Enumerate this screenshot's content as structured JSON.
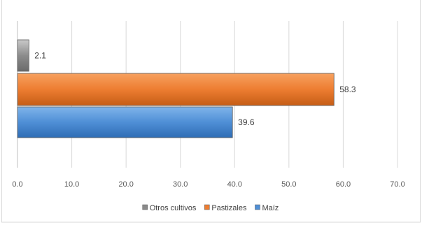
{
  "chart_data": {
    "type": "bar",
    "orientation": "horizontal",
    "categories": [
      "Otros cultivos",
      "Pastizales",
      "Maíz"
    ],
    "values": [
      2.1,
      58.3,
      39.6
    ],
    "value_labels": [
      "2.1",
      "58.3",
      "39.6"
    ],
    "colors": [
      "#8a8a8a",
      "#ed7d31",
      "#4f8fd6"
    ],
    "xlim": [
      0,
      70
    ],
    "xticks": [
      "0.0",
      "10.0",
      "20.0",
      "30.0",
      "40.0",
      "50.0",
      "60.0",
      "70.0"
    ],
    "grid": true,
    "legend_position": "bottom"
  }
}
